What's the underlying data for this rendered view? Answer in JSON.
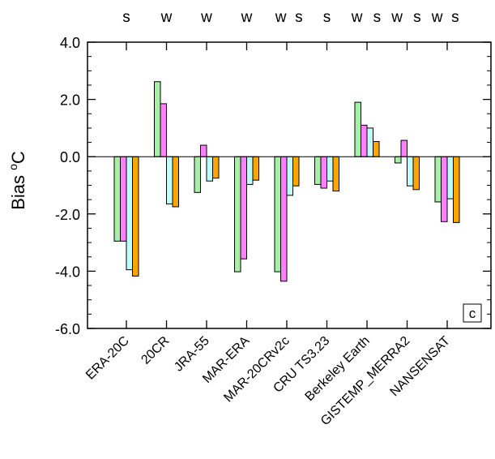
{
  "chart_data": {
    "type": "bar",
    "title": "",
    "xlabel": "",
    "ylabel": "Bias °C",
    "ylabel_main": "Bias ",
    "ylabel_unit": "C",
    "ylim": [
      -6,
      4
    ],
    "yticks": [
      4,
      2,
      0,
      -2,
      -4,
      -6
    ],
    "ytick_labels": [
      "4.0",
      "2.0",
      "0.0",
      "-2.0",
      "-4.0",
      "-6.0"
    ],
    "grid": false,
    "panel_label": "c",
    "categories": [
      "ERA-20C",
      "20CR",
      "JRA-55",
      "MAR-ERA",
      "MAR-20CRv2c",
      "CRU TS3.23",
      "Berkeley Earth",
      "GISTEMP_MERRA2",
      "NANSENSAT"
    ],
    "series": [
      {
        "color": "#a6f0a6",
        "values": [
          -2.95,
          2.62,
          -1.25,
          -4.02,
          -4.02,
          -0.97,
          1.9,
          -0.22,
          -1.58
        ]
      },
      {
        "color": "#ff80ff",
        "values": [
          -2.95,
          1.85,
          0.4,
          -3.57,
          -4.35,
          -1.1,
          1.1,
          0.57,
          -2.27
        ]
      },
      {
        "color": "#c0ffff",
        "values": [
          -3.95,
          -1.65,
          -0.85,
          -0.97,
          -1.35,
          -0.85,
          1.0,
          -1.02,
          -1.47
        ]
      },
      {
        "color": "#ffa500",
        "values": [
          -4.17,
          -1.75,
          -0.75,
          -0.82,
          -1.02,
          -1.2,
          0.53,
          -1.15,
          -2.3
        ]
      }
    ],
    "season_markers": [
      {
        "letter": "s",
        "x": 0.0
      },
      {
        "letter": "w",
        "x": 1.0
      },
      {
        "letter": "w",
        "x": 2.0
      },
      {
        "letter": "w",
        "x": 3.0
      },
      {
        "letter": "w",
        "x": 3.85
      },
      {
        "letter": "s",
        "x": 4.3
      },
      {
        "letter": "s",
        "x": 5.0
      },
      {
        "letter": "w",
        "x": 5.75
      },
      {
        "letter": "s",
        "x": 6.25
      },
      {
        "letter": "w",
        "x": 6.75
      },
      {
        "letter": "s",
        "x": 7.25
      },
      {
        "letter": "w",
        "x": 7.75
      },
      {
        "letter": "s",
        "x": 8.2
      }
    ]
  }
}
